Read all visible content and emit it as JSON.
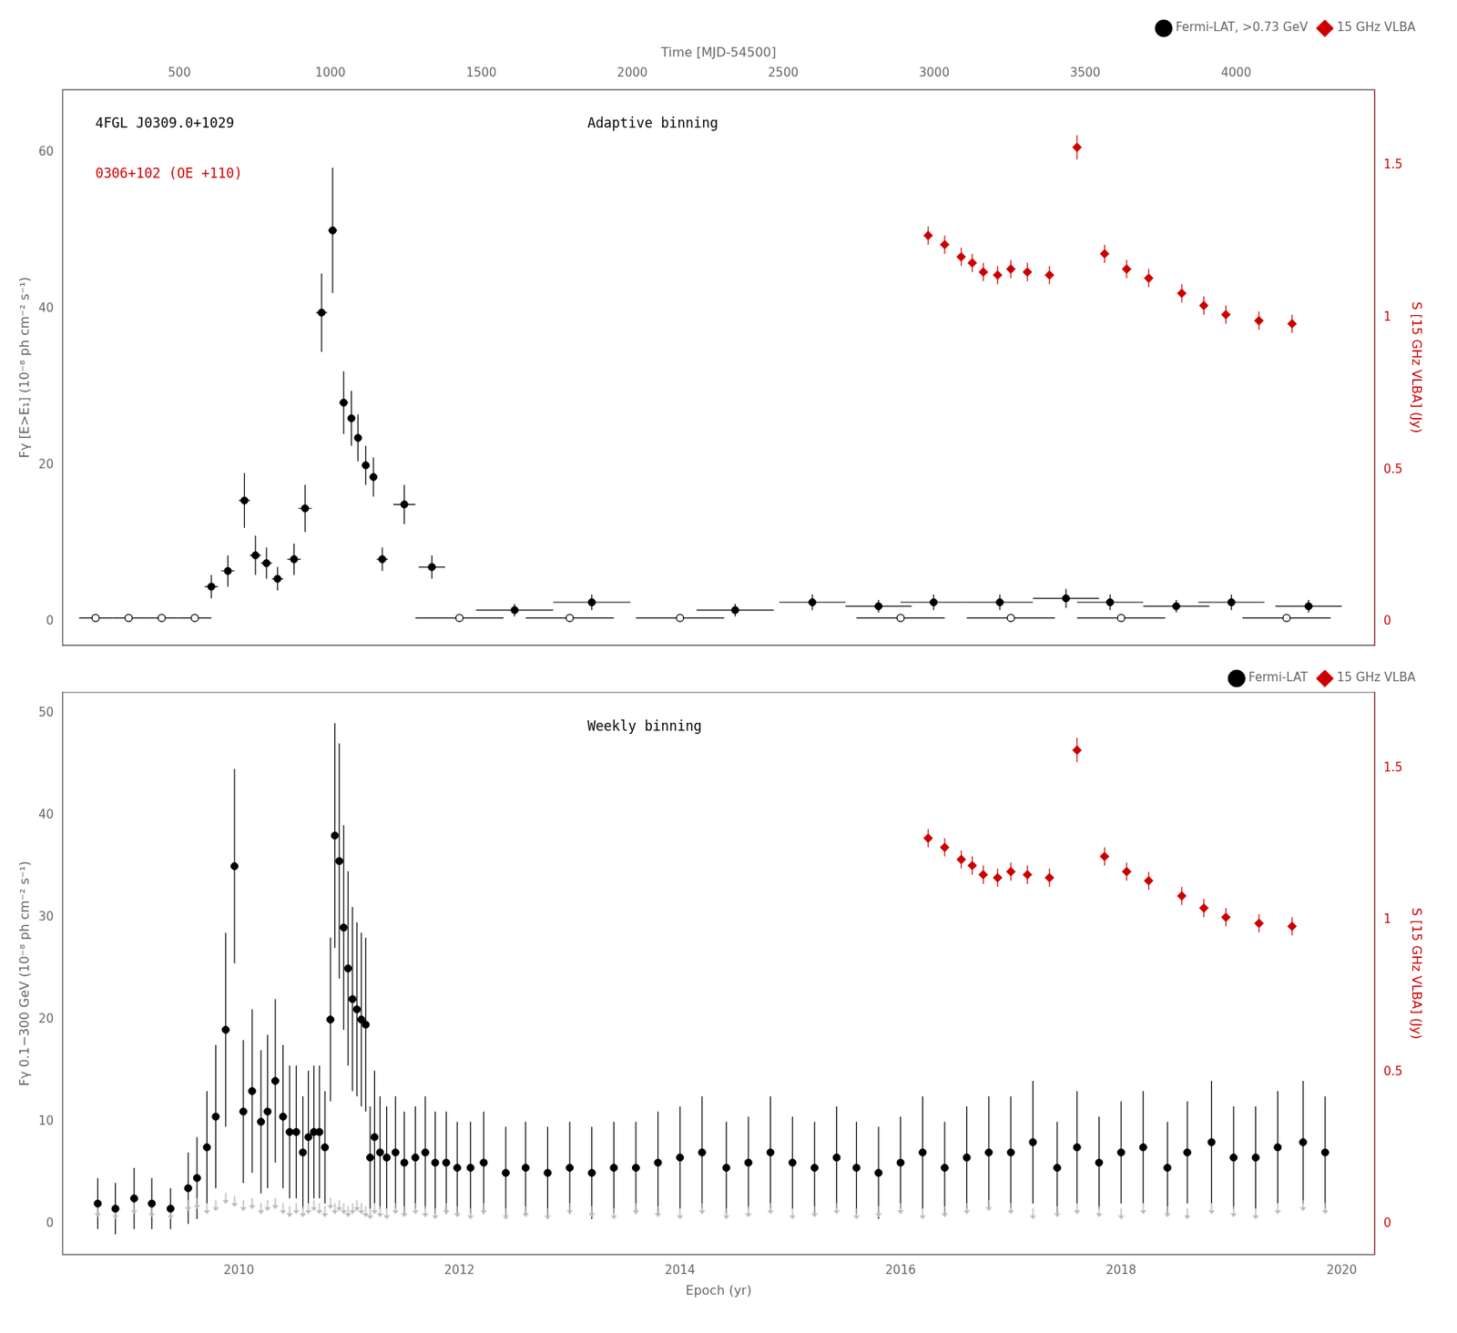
{
  "chart_data": [
    {
      "type": "scatter",
      "xlim": [
        2008.4,
        2020.3
      ],
      "x2label": "Time [MJD-54500]",
      "x2lim": [
        112.6,
        4459.075
      ],
      "x2ticks": [
        500,
        1000,
        1500,
        2000,
        2500,
        3000,
        3500,
        4000
      ],
      "ylabel": "Fγ [E>E₁] (10⁻⁸ ph cm⁻² s⁻¹)",
      "ylim": [
        -3,
        68
      ],
      "yticks": [
        0,
        20,
        40,
        60
      ],
      "y2label": "S [15 GHz VLBA] (Jy)",
      "y2lim": [
        -0.07720588235294118,
        1.75
      ],
      "y2ticks": [
        0,
        0.5,
        1,
        1.5
      ],
      "grid": false,
      "legend": "upper right",
      "annotations": [
        {
          "text": "4FGL J0309.0+1029",
          "color": "#000000"
        },
        {
          "text": "0306+102 (OE +110)",
          "color": "#cc0000"
        },
        {
          "text": "Adaptive binning",
          "color": "#000000"
        }
      ],
      "series": [
        {
          "name": "Fermi-LAT, >0.73 GeV",
          "color": "#000000",
          "marker": "circle",
          "x": [
            2009.75,
            2009.9,
            2010.05,
            2010.15,
            2010.25,
            2010.35,
            2010.5,
            2010.6,
            2010.75,
            2010.85,
            2010.95,
            2011.02,
            2011.08,
            2011.15,
            2011.22,
            2011.3,
            2011.5,
            2011.75,
            2012.5,
            2013.2,
            2014.5,
            2015.2,
            2015.8,
            2016.3,
            2016.9,
            2017.5,
            2017.9,
            2018.5,
            2019.0,
            2019.7
          ],
          "values": [
            4.5,
            6.5,
            15.5,
            8.5,
            7.5,
            5.5,
            8.0,
            14.5,
            39.5,
            50.0,
            28.0,
            26.0,
            23.5,
            20.0,
            18.5,
            8.0,
            15.0,
            7.0,
            1.5,
            2.5,
            1.5,
            2.5,
            2.0,
            2.5,
            2.5,
            3.0,
            2.5,
            2.0,
            2.5,
            2.0
          ],
          "xerr": [
            0.06,
            0.06,
            0.05,
            0.05,
            0.05,
            0.05,
            0.06,
            0.06,
            0.05,
            0.04,
            0.04,
            0.03,
            0.03,
            0.03,
            0.03,
            0.05,
            0.1,
            0.12,
            0.35,
            0.35,
            0.35,
            0.3,
            0.3,
            0.3,
            0.3,
            0.3,
            0.3,
            0.3,
            0.3,
            0.3
          ],
          "yerr": [
            1.5,
            2.0,
            3.5,
            2.5,
            2.0,
            1.5,
            2.0,
            3.0,
            5.0,
            8.0,
            4.0,
            3.5,
            3.0,
            2.5,
            2.5,
            1.5,
            2.5,
            1.5,
            0.8,
            1.0,
            0.8,
            1.0,
            0.8,
            1.0,
            1.0,
            1.2,
            1.0,
            0.8,
            1.0,
            0.8
          ]
        },
        {
          "color": "#000000",
          "marker": "open_circle",
          "x": [
            2008.7,
            2009.0,
            2009.3,
            2009.6,
            2012.0,
            2013.0,
            2014.0,
            2016.0,
            2017.0,
            2018.0,
            2019.5
          ],
          "values": [
            0.5,
            0.5,
            0.5,
            0.5,
            0.5,
            0.5,
            0.5,
            0.5,
            0.5,
            0.5,
            0.5
          ],
          "xerr": [
            0.15,
            0.15,
            0.15,
            0.15,
            0.4,
            0.4,
            0.4,
            0.4,
            0.4,
            0.4,
            0.4
          ],
          "yerr": [
            0.3,
            0.3,
            0.3,
            0.3,
            0.3,
            0.3,
            0.3,
            0.3,
            0.3,
            0.3,
            0.3
          ]
        },
        {
          "name": "15 GHz VLBA",
          "color": "#cc0000",
          "marker": "diamond",
          "axis": "y2",
          "x": [
            2016.25,
            2016.4,
            2016.55,
            2016.65,
            2016.75,
            2016.88,
            2017.0,
            2017.15,
            2017.35,
            2017.6,
            2017.85,
            2018.05,
            2018.25,
            2018.55,
            2018.75,
            2018.95,
            2019.25,
            2019.55
          ],
          "values": [
            1.27,
            1.24,
            1.2,
            1.18,
            1.15,
            1.14,
            1.16,
            1.15,
            1.14,
            1.56,
            1.21,
            1.16,
            1.13,
            1.08,
            1.04,
            1.01,
            0.99,
            0.98
          ],
          "xerr": [
            0.025,
            0.025,
            0.025,
            0.025,
            0.025,
            0.025,
            0.025,
            0.025,
            0.025,
            0.025,
            0.025,
            0.025,
            0.025,
            0.025,
            0.025,
            0.025,
            0.025,
            0.025
          ],
          "yerr": [
            0.03,
            0.03,
            0.03,
            0.03,
            0.03,
            0.03,
            0.03,
            0.03,
            0.03,
            0.04,
            0.03,
            0.03,
            0.03,
            0.03,
            0.03,
            0.03,
            0.03,
            0.03
          ]
        }
      ]
    },
    {
      "type": "scatter",
      "xlabel": "Epoch (yr)",
      "xlim": [
        2008.4,
        2020.3
      ],
      "xticks": [
        2010,
        2012,
        2014,
        2016,
        2018,
        2020
      ],
      "ylabel": "Fγ 0.1−300 GeV (10⁻⁸ ph cm⁻² s⁻¹)",
      "ylim": [
        -3,
        52
      ],
      "yticks": [
        0,
        10,
        20,
        30,
        40,
        50
      ],
      "y2label": "S [15 GHz VLBA] (Jy)",
      "y2lim": [
        -0.10096153846153846,
        1.75
      ],
      "y2ticks": [
        0,
        0.5,
        1,
        1.5
      ],
      "grid": false,
      "legend": "upper right",
      "annotations": [
        {
          "text": "Weekly binning",
          "color": "#000000"
        }
      ],
      "series": [
        {
          "name": "Fermi-LAT",
          "color": "#000000",
          "marker": "circle",
          "x": [
            2008.72,
            2008.88,
            2009.05,
            2009.21,
            2009.38,
            2009.54,
            2009.62,
            2009.71,
            2009.79,
            2009.88,
            2009.96,
            2010.04,
            2010.12,
            2010.2,
            2010.26,
            2010.33,
            2010.4,
            2010.46,
            2010.52,
            2010.58,
            2010.63,
            2010.68,
            2010.73,
            2010.78,
            2010.83,
            2010.87,
            2010.91,
            2010.95,
            2010.99,
            2011.03,
            2011.07,
            2011.11,
            2011.15,
            2011.19,
            2011.23,
            2011.28,
            2011.34,
            2011.42,
            2011.5,
            2011.6,
            2011.69,
            2011.78,
            2011.88,
            2011.98,
            2012.1,
            2012.22,
            2012.42,
            2012.6,
            2012.8,
            2013.0,
            2013.2,
            2013.4,
            2013.6,
            2013.8,
            2014.0,
            2014.2,
            2014.42,
            2014.62,
            2014.82,
            2015.02,
            2015.22,
            2015.42,
            2015.6,
            2015.8,
            2016.0,
            2016.2,
            2016.4,
            2016.6,
            2016.8,
            2017.0,
            2017.2,
            2017.42,
            2017.6,
            2017.8,
            2018.0,
            2018.2,
            2018.42,
            2018.6,
            2018.82,
            2019.02,
            2019.22,
            2019.42,
            2019.65,
            2019.85
          ],
          "values": [
            2.0,
            1.5,
            2.5,
            2.0,
            1.5,
            3.5,
            4.5,
            7.5,
            10.5,
            19.0,
            35.0,
            11.0,
            13.0,
            10.0,
            11.0,
            14.0,
            10.5,
            9.0,
            9.0,
            7.0,
            8.5,
            9.0,
            9.0,
            7.5,
            20.0,
            38.0,
            35.5,
            29.0,
            25.0,
            22.0,
            21.0,
            20.0,
            19.5,
            6.5,
            8.5,
            7.0,
            6.5,
            7.0,
            6.0,
            6.5,
            7.0,
            6.0,
            6.0,
            5.5,
            5.5,
            6.0,
            5.0,
            5.5,
            5.0,
            5.5,
            5.0,
            5.5,
            5.5,
            6.0,
            6.5,
            7.0,
            5.5,
            6.0,
            7.0,
            6.0,
            5.5,
            6.5,
            5.5,
            5.0,
            6.0,
            7.0,
            5.5,
            6.5,
            7.0,
            7.0,
            8.0,
            5.5,
            7.5,
            6.0,
            7.0,
            7.5,
            5.5,
            7.0,
            8.0,
            6.5,
            6.5,
            7.5,
            8.0,
            7.0
          ],
          "yerr": [
            2.5,
            2.5,
            3.0,
            2.5,
            2.0,
            3.5,
            4.0,
            5.5,
            7.0,
            9.5,
            9.5,
            7.0,
            8.0,
            7.0,
            7.5,
            8.0,
            7.0,
            6.5,
            6.5,
            5.5,
            6.5,
            6.5,
            6.5,
            5.5,
            8.0,
            11.0,
            11.5,
            10.0,
            9.5,
            9.0,
            8.5,
            8.5,
            8.5,
            5.0,
            6.5,
            5.5,
            5.0,
            5.5,
            5.0,
            5.0,
            5.5,
            5.0,
            5.0,
            4.5,
            4.5,
            5.0,
            4.5,
            4.5,
            4.5,
            4.5,
            4.5,
            4.5,
            4.5,
            5.0,
            5.0,
            5.5,
            4.5,
            4.5,
            5.5,
            4.5,
            4.5,
            5.0,
            4.5,
            4.5,
            4.5,
            5.5,
            4.5,
            5.0,
            5.5,
            5.5,
            6.0,
            4.5,
            5.5,
            4.5,
            5.0,
            5.5,
            4.5,
            5.0,
            6.0,
            5.0,
            5.0,
            5.5,
            6.0,
            5.5
          ]
        },
        {
          "color": "#bbbbbb",
          "marker": "arrow_down",
          "x": [
            2008.72,
            2008.88,
            2009.05,
            2009.21,
            2009.38,
            2009.54,
            2009.62,
            2009.71,
            2009.79,
            2009.88,
            2009.96,
            2010.04,
            2010.12,
            2010.2,
            2010.26,
            2010.33,
            2010.4,
            2010.46,
            2010.52,
            2010.58,
            2010.63,
            2010.68,
            2010.73,
            2010.78,
            2010.83,
            2010.87,
            2010.91,
            2010.95,
            2010.99,
            2011.03,
            2011.07,
            2011.11,
            2011.15,
            2011.19,
            2011.23,
            2011.28,
            2011.34,
            2011.42,
            2011.5,
            2011.6,
            2011.69,
            2011.78,
            2011.88,
            2011.98,
            2012.1,
            2012.22,
            2012.42,
            2012.6,
            2012.8,
            2013.0,
            2013.2,
            2013.4,
            2013.6,
            2013.8,
            2014.0,
            2014.2,
            2014.42,
            2014.62,
            2014.82,
            2015.02,
            2015.22,
            2015.42,
            2015.6,
            2015.8,
            2016.0,
            2016.2,
            2016.4,
            2016.6,
            2016.8,
            2017.0,
            2017.2,
            2017.42,
            2017.6,
            2017.8,
            2018.0,
            2018.2,
            2018.42,
            2018.6,
            2018.82,
            2019.02,
            2019.22,
            2019.42,
            2019.65,
            2019.85
          ],
          "values": [
            1.2,
            1.0,
            1.5,
            1.2,
            1.0,
            1.8,
            2.0,
            1.5,
            1.8,
            2.5,
            2.2,
            1.8,
            2.0,
            1.5,
            1.8,
            2.0,
            1.5,
            1.2,
            1.5,
            1.2,
            1.5,
            1.8,
            1.5,
            1.2,
            2.0,
            1.5,
            1.8,
            1.5,
            1.2,
            1.5,
            1.8,
            1.5,
            1.2,
            1.0,
            1.5,
            1.2,
            1.0,
            1.5,
            1.2,
            1.5,
            1.2,
            1.0,
            1.5,
            1.2,
            1.0,
            1.5,
            1.0,
            1.2,
            1.0,
            1.5,
            1.2,
            1.0,
            1.5,
            1.2,
            1.0,
            1.5,
            1.0,
            1.2,
            1.5,
            1.0,
            1.2,
            1.5,
            1.0,
            1.2,
            1.5,
            1.0,
            1.2,
            1.5,
            1.8,
            1.5,
            1.0,
            1.2,
            1.5,
            1.2,
            1.0,
            1.5,
            1.2,
            1.0,
            1.5,
            1.2,
            1.0,
            1.5,
            1.8,
            1.5
          ]
        },
        {
          "name": "15 GHz VLBA",
          "color": "#cc0000",
          "marker": "diamond",
          "axis": "y2",
          "x": [
            2016.25,
            2016.4,
            2016.55,
            2016.65,
            2016.75,
            2016.88,
            2017.0,
            2017.15,
            2017.35,
            2017.6,
            2017.85,
            2018.05,
            2018.25,
            2018.55,
            2018.75,
            2018.95,
            2019.25,
            2019.55
          ],
          "values": [
            1.27,
            1.24,
            1.2,
            1.18,
            1.15,
            1.14,
            1.16,
            1.15,
            1.14,
            1.56,
            1.21,
            1.16,
            1.13,
            1.08,
            1.04,
            1.01,
            0.99,
            0.98
          ],
          "xerr": [
            0.025,
            0.025,
            0.025,
            0.025,
            0.025,
            0.025,
            0.025,
            0.025,
            0.025,
            0.025,
            0.025,
            0.025,
            0.025,
            0.025,
            0.025,
            0.025,
            0.025,
            0.025
          ],
          "yerr": [
            0.03,
            0.03,
            0.03,
            0.03,
            0.03,
            0.03,
            0.03,
            0.03,
            0.03,
            0.04,
            0.03,
            0.03,
            0.03,
            0.03,
            0.03,
            0.03,
            0.03,
            0.03
          ]
        }
      ]
    }
  ]
}
